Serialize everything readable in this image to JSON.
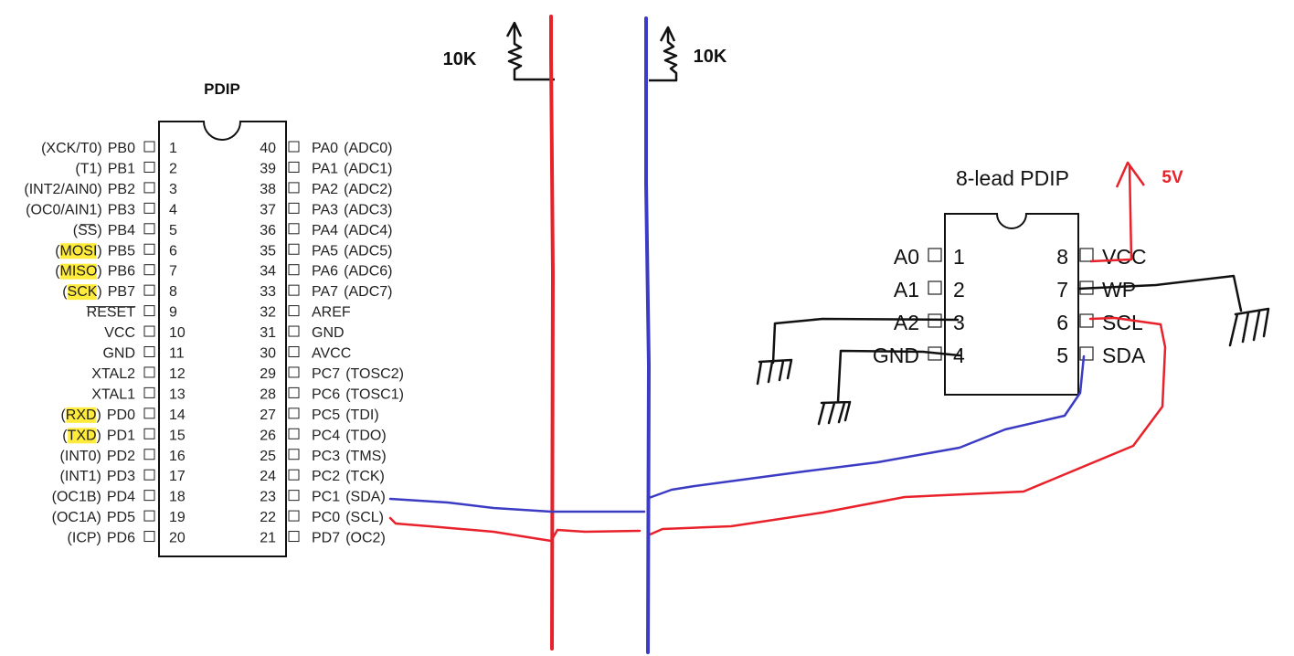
{
  "mcu": {
    "package_label": "PDIP",
    "left_pins": [
      {
        "num": "1",
        "pin": "PB0",
        "alt": "(XCK/T0)",
        "hl": false
      },
      {
        "num": "2",
        "pin": "PB1",
        "alt": "(T1)",
        "hl": false
      },
      {
        "num": "3",
        "pin": "PB2",
        "alt": "(INT2/AIN0)",
        "hl": false
      },
      {
        "num": "4",
        "pin": "PB3",
        "alt": "(OC0/AIN1)",
        "hl": false
      },
      {
        "num": "5",
        "pin": "PB4",
        "alt": "(SS)",
        "hl": false,
        "overline": true
      },
      {
        "num": "6",
        "pin": "PB5",
        "alt": "(MOSI)",
        "hl": true
      },
      {
        "num": "7",
        "pin": "PB6",
        "alt": "(MISO)",
        "hl": true
      },
      {
        "num": "8",
        "pin": "PB7",
        "alt": "(SCK)",
        "hl": true
      },
      {
        "num": "9",
        "pin": "RESET",
        "alt": "",
        "hl": false,
        "overline": true
      },
      {
        "num": "10",
        "pin": "VCC",
        "alt": "",
        "hl": false
      },
      {
        "num": "11",
        "pin": "GND",
        "alt": "",
        "hl": false
      },
      {
        "num": "12",
        "pin": "XTAL2",
        "alt": "",
        "hl": false
      },
      {
        "num": "13",
        "pin": "XTAL1",
        "alt": "",
        "hl": false
      },
      {
        "num": "14",
        "pin": "PD0",
        "alt": "(RXD)",
        "hl": true
      },
      {
        "num": "15",
        "pin": "PD1",
        "alt": "(TXD)",
        "hl": true
      },
      {
        "num": "16",
        "pin": "PD2",
        "alt": "(INT0)",
        "hl": false
      },
      {
        "num": "17",
        "pin": "PD3",
        "alt": "(INT1)",
        "hl": false
      },
      {
        "num": "18",
        "pin": "PD4",
        "alt": "(OC1B)",
        "hl": false
      },
      {
        "num": "19",
        "pin": "PD5",
        "alt": "(OC1A)",
        "hl": false
      },
      {
        "num": "20",
        "pin": "PD6",
        "alt": "(ICP)",
        "hl": false
      }
    ],
    "right_pins": [
      {
        "num": "40",
        "pin": "PA0",
        "alt": "(ADC0)"
      },
      {
        "num": "39",
        "pin": "PA1",
        "alt": "(ADC1)"
      },
      {
        "num": "38",
        "pin": "PA2",
        "alt": "(ADC2)"
      },
      {
        "num": "37",
        "pin": "PA3",
        "alt": "(ADC3)"
      },
      {
        "num": "36",
        "pin": "PA4",
        "alt": "(ADC4)"
      },
      {
        "num": "35",
        "pin": "PA5",
        "alt": "(ADC5)"
      },
      {
        "num": "34",
        "pin": "PA6",
        "alt": "(ADC6)"
      },
      {
        "num": "33",
        "pin": "PA7",
        "alt": "(ADC7)"
      },
      {
        "num": "32",
        "pin": "AREF",
        "alt": ""
      },
      {
        "num": "31",
        "pin": "GND",
        "alt": ""
      },
      {
        "num": "30",
        "pin": "AVCC",
        "alt": ""
      },
      {
        "num": "29",
        "pin": "PC7",
        "alt": "(TOSC2)"
      },
      {
        "num": "28",
        "pin": "PC6",
        "alt": "(TOSC1)"
      },
      {
        "num": "27",
        "pin": "PC5",
        "alt": "(TDI)"
      },
      {
        "num": "26",
        "pin": "PC4",
        "alt": "(TDO)"
      },
      {
        "num": "25",
        "pin": "PC3",
        "alt": "(TMS)"
      },
      {
        "num": "24",
        "pin": "PC2",
        "alt": "(TCK)"
      },
      {
        "num": "23",
        "pin": "PC1",
        "alt": "(SDA)"
      },
      {
        "num": "22",
        "pin": "PC0",
        "alt": "(SCL)"
      },
      {
        "num": "21",
        "pin": "PD7",
        "alt": "(OC2)"
      }
    ]
  },
  "eeprom": {
    "package_label": "8-lead PDIP",
    "left_pins": [
      {
        "num": "1",
        "name": "A0"
      },
      {
        "num": "2",
        "name": "A1"
      },
      {
        "num": "3",
        "name": "A2"
      },
      {
        "num": "4",
        "name": "GND"
      }
    ],
    "right_pins": [
      {
        "num": "8",
        "name": "VCC"
      },
      {
        "num": "7",
        "name": "WP"
      },
      {
        "num": "6",
        "name": "SCL"
      },
      {
        "num": "5",
        "name": "SDA"
      }
    ]
  },
  "resistors": {
    "left_label": "10K",
    "right_label": "10K"
  },
  "supply_label": "5V",
  "colors": {
    "scl_wire": "#e8212a",
    "sda_wire": "#3b3bc4",
    "highlight": "#ffeb3b",
    "ink": "#111111"
  }
}
